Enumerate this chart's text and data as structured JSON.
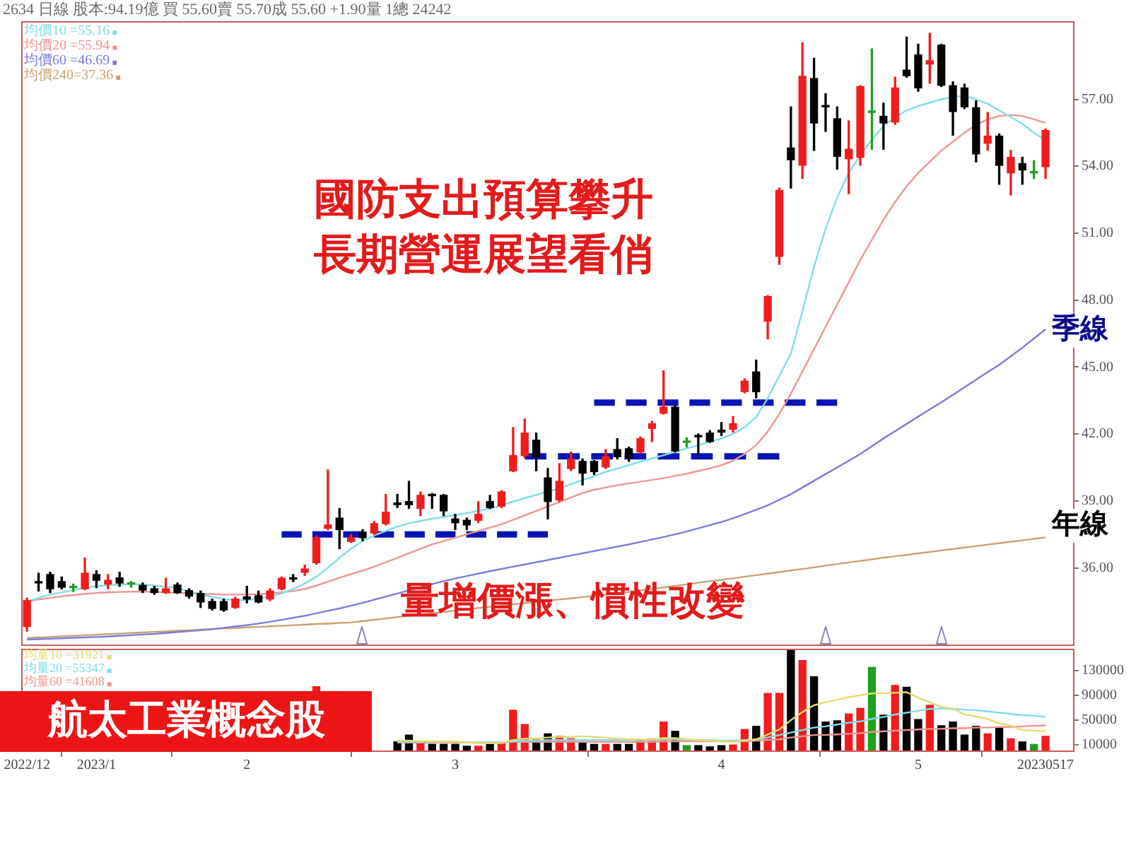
{
  "chart_data": [
    {
      "type": "candlestick",
      "title": "2634 日線 股本:94.19億 買 55.60賣 55.70成 55.60 +1.90量 1總 24242",
      "categories": [
        "2022/12",
        null,
        null,
        null,
        null,
        null,
        "2023/1",
        null,
        null,
        null,
        null,
        null,
        null,
        null,
        null,
        null,
        null,
        null,
        null,
        "2",
        null,
        null,
        null,
        null,
        null,
        null,
        null,
        null,
        null,
        null,
        null,
        null,
        null,
        null,
        null,
        null,
        null,
        "3",
        null,
        null,
        null,
        null,
        null,
        null,
        null,
        null,
        null,
        null,
        null,
        null,
        null,
        null,
        null,
        null,
        null,
        null,
        null,
        null,
        null,
        null,
        "4",
        null,
        null,
        null,
        null,
        null,
        null,
        null,
        null,
        null,
        null,
        null,
        null,
        null,
        null,
        null,
        null,
        "5",
        null,
        null,
        null,
        null,
        null,
        null,
        null,
        null,
        null,
        null,
        "20230517",
        null,
        null
      ],
      "ohlc": [
        [
          33.37,
          34.64,
          33.16,
          34.53
        ],
        [
          35.32,
          35.76,
          34.96,
          35.32
        ],
        [
          35.7,
          35.8,
          34.89,
          35.06
        ],
        [
          35.38,
          35.59,
          35.06,
          35.13
        ],
        [
          35.11,
          35.27,
          34.94,
          35.11
        ],
        [
          35.06,
          36.44,
          35.02,
          35.76
        ],
        [
          35.7,
          35.87,
          35.11,
          35.44
        ],
        [
          35.27,
          35.7,
          35.06,
          35.44
        ],
        [
          35.55,
          35.8,
          35.17,
          35.32
        ],
        [
          35.27,
          35.38,
          35.13,
          35.27
        ],
        [
          35.21,
          35.32,
          34.89,
          35.0
        ],
        [
          35.06,
          35.17,
          34.81,
          34.89
        ],
        [
          34.89,
          35.53,
          34.85,
          35.06
        ],
        [
          35.23,
          35.32,
          34.85,
          34.89
        ],
        [
          34.98,
          35.06,
          34.64,
          34.73
        ],
        [
          34.85,
          34.96,
          34.22,
          34.47
        ],
        [
          34.49,
          34.6,
          34.11,
          34.18
        ],
        [
          34.49,
          34.6,
          34.05,
          34.11
        ],
        [
          34.22,
          34.68,
          34.18,
          34.6
        ],
        [
          34.7,
          35.17,
          34.43,
          34.6
        ],
        [
          34.75,
          34.96,
          34.43,
          34.47
        ],
        [
          34.6,
          35.06,
          34.53,
          34.96
        ],
        [
          35.06,
          35.59,
          35.02,
          35.53
        ],
        [
          35.55,
          35.7,
          35.38,
          35.49
        ],
        [
          35.8,
          36.12,
          35.66,
          35.95
        ],
        [
          36.23,
          37.43,
          36.16,
          37.35
        ],
        [
          37.77,
          40.39,
          37.71,
          37.92
        ],
        [
          38.23,
          38.66,
          36.86,
          37.71
        ],
        [
          37.18,
          37.49,
          37.14,
          37.35
        ],
        [
          37.6,
          37.71,
          37.22,
          37.35
        ],
        [
          37.56,
          38.07,
          37.49,
          37.98
        ],
        [
          37.98,
          39.29,
          37.92,
          38.49
        ],
        [
          38.91,
          39.29,
          38.7,
          38.83
        ],
        [
          38.97,
          39.88,
          38.66,
          38.83
        ],
        [
          38.66,
          39.4,
          38.34,
          39.25
        ],
        [
          39.29,
          39.33,
          38.66,
          39.23
        ],
        [
          39.25,
          39.29,
          38.34,
          38.55
        ],
        [
          38.19,
          38.4,
          37.71,
          38.02
        ],
        [
          38.13,
          38.23,
          37.71,
          37.92
        ],
        [
          38.13,
          38.97,
          38.02,
          38.4
        ],
        [
          38.97,
          39.25,
          38.66,
          38.7
        ],
        [
          38.76,
          39.46,
          38.7,
          39.4
        ],
        [
          40.35,
          42.29,
          40.31,
          41.03
        ],
        [
          41.03,
          42.67,
          40.94,
          42.04
        ],
        [
          41.72,
          42.04,
          40.35,
          40.98
        ],
        [
          40.03,
          40.45,
          38.19,
          38.97
        ],
        [
          39.04,
          40.67,
          38.97,
          39.88
        ],
        [
          40.45,
          41.19,
          40.35,
          40.88
        ],
        [
          40.77,
          40.88,
          39.71,
          40.24
        ],
        [
          40.77,
          40.81,
          40.18,
          40.31
        ],
        [
          40.52,
          41.3,
          40.45,
          40.98
        ],
        [
          41.3,
          41.79,
          40.88,
          40.98
        ],
        [
          41.34,
          41.41,
          40.77,
          40.94
        ],
        [
          41.19,
          41.87,
          41.15,
          41.79
        ],
        [
          42.25,
          42.57,
          41.66,
          42.46
        ],
        [
          42.93,
          44.83,
          42.89,
          43.2
        ],
        [
          43.2,
          43.25,
          41.19,
          41.24
        ],
        [
          41.62,
          41.83,
          41.41,
          41.62
        ],
        [
          41.91,
          42.0,
          41.09,
          41.87
        ],
        [
          42.04,
          42.15,
          41.62,
          41.66
        ],
        [
          42.17,
          42.51,
          41.93,
          42.08
        ],
        [
          42.21,
          42.78,
          42.08,
          42.46
        ],
        [
          43.9,
          44.47,
          43.84,
          44.37
        ],
        [
          44.78,
          45.31,
          43.62,
          43.89
        ],
        [
          47.06,
          48.2,
          46.26,
          48.16
        ],
        [
          49.96,
          53.02,
          49.6,
          52.92
        ],
        [
          54.82,
          56.66,
          53.02,
          54.29
        ],
        [
          54.04,
          59.53,
          53.45,
          58.03
        ],
        [
          57.93,
          58.84,
          54.71,
          55.94
        ],
        [
          56.72,
          57.25,
          55.56,
          56.66
        ],
        [
          56.13,
          56.66,
          53.87,
          54.44
        ],
        [
          54.33,
          56.03,
          52.77,
          54.76
        ],
        [
          54.4,
          57.61,
          54.04,
          57.57
        ],
        [
          56.41,
          59.26,
          54.76,
          56.41
        ],
        [
          56.24,
          56.83,
          54.76,
          55.94
        ],
        [
          55.98,
          57.99,
          55.88,
          57.51
        ],
        [
          58.31,
          59.79,
          57.99,
          58.06
        ],
        [
          58.99,
          59.47,
          57.36,
          57.51
        ],
        [
          58.58,
          59.96,
          57.72,
          58.73
        ],
        [
          59.43,
          59.47,
          57.57,
          57.63
        ],
        [
          57.61,
          57.78,
          55.39,
          56.45
        ],
        [
          57.51,
          57.68,
          56.58,
          56.66
        ],
        [
          56.62,
          56.93,
          54.19,
          54.55
        ],
        [
          55.03,
          56.41,
          54.71,
          55.35
        ],
        [
          55.35,
          55.45,
          53.19,
          54.04
        ],
        [
          53.7,
          54.71,
          52.71,
          54.4
        ],
        [
          54.12,
          54.4,
          53.19,
          53.83
        ],
        [
          53.7,
          54.25,
          53.45,
          53.7
        ],
        [
          53.98,
          55.67,
          53.45,
          55.6
        ],
        null,
        null
      ],
      "colors": [
        "#f01c1c",
        "#000000",
        "#000000",
        "#000000",
        "#1fa01f",
        "#f01c1c",
        "#000000",
        "#f01c1c",
        "#000000",
        "#1fa01f",
        "#000000",
        "#000000",
        "#f01c1c",
        "#000000",
        "#000000",
        "#000000",
        "#000000",
        "#000000",
        "#f01c1c",
        "#000000",
        "#000000",
        "#f01c1c",
        "#f01c1c",
        "#000000",
        "#f01c1c",
        "#f01c1c",
        "#f01c1c",
        "#000000",
        "#f01c1c",
        "#000000",
        "#f01c1c",
        "#f01c1c",
        "#000000",
        "#000000",
        "#f01c1c",
        "#000000",
        "#000000",
        "#000000",
        "#000000",
        "#f01c1c",
        "#000000",
        "#f01c1c",
        "#f01c1c",
        "#f01c1c",
        "#000000",
        "#000000",
        "#f01c1c",
        "#f01c1c",
        "#000000",
        "#000000",
        "#f01c1c",
        "#000000",
        "#000000",
        "#f01c1c",
        "#f01c1c",
        "#f01c1c",
        "#000000",
        "#1fa01f",
        "#000000",
        "#000000",
        "#000000",
        "#f01c1c",
        "#f01c1c",
        "#000000",
        "#f01c1c",
        "#f01c1c",
        "#000000",
        "#f01c1c",
        "#000000",
        "#000000",
        "#000000",
        "#f01c1c",
        "#f01c1c",
        "#1fa01f",
        "#000000",
        "#f01c1c",
        "#000000",
        "#000000",
        "#f01c1c",
        "#000000",
        "#000000",
        "#000000",
        "#000000",
        "#f01c1c",
        "#000000",
        "#f01c1c",
        "#000000",
        "#1fa01f",
        "#f01c1c",
        null,
        null
      ],
      "series": [
        {
          "type": "line",
          "name": "均價10 =55.16",
          "color": "#7fdde6",
          "values": [
            34.5,
            34.65,
            34.8,
            34.9,
            35.0,
            35.1,
            35.18,
            35.22,
            35.25,
            35.28,
            35.25,
            35.2,
            35.15,
            35.1,
            34.95,
            34.82,
            34.7,
            34.6,
            34.55,
            34.55,
            34.62,
            34.72,
            34.85,
            35.05,
            35.3,
            35.6,
            36.0,
            36.45,
            36.85,
            37.2,
            37.45,
            37.65,
            37.85,
            38.0,
            38.1,
            38.2,
            38.28,
            38.36,
            38.45,
            38.55,
            38.65,
            38.8,
            38.97,
            39.12,
            39.27,
            39.42,
            39.57,
            39.75,
            39.93,
            40.1,
            40.3,
            40.45,
            40.6,
            40.76,
            40.9,
            41.05,
            41.2,
            41.35,
            41.5,
            41.65,
            41.8,
            42.0,
            42.3,
            42.75,
            43.6,
            44.6,
            45.6,
            47.5,
            49.5,
            51.2,
            52.6,
            53.7,
            54.5,
            55.2,
            55.8,
            56.2,
            56.5,
            56.7,
            56.85,
            57.0,
            57.1,
            57.15,
            57.0,
            56.8,
            56.5,
            56.2,
            55.9,
            55.5,
            55.16,
            null,
            null
          ]
        },
        {
          "type": "line",
          "name": "均價20 =55.94",
          "color": "#ee9494",
          "values": [
            34.5,
            34.58,
            34.65,
            34.72,
            34.78,
            34.83,
            34.87,
            34.9,
            34.92,
            34.93,
            34.93,
            34.92,
            34.9,
            34.88,
            34.86,
            34.84,
            34.82,
            34.8,
            34.8,
            34.8,
            34.82,
            34.85,
            34.9,
            34.96,
            35.05,
            35.2,
            35.38,
            35.55,
            35.72,
            35.88,
            36.05,
            36.25,
            36.45,
            36.65,
            36.85,
            37.05,
            37.2,
            37.35,
            37.5,
            37.65,
            37.8,
            37.95,
            38.15,
            38.35,
            38.55,
            38.75,
            38.95,
            39.15,
            39.35,
            39.5,
            39.6,
            39.7,
            39.78,
            39.86,
            39.94,
            40.02,
            40.12,
            40.22,
            40.34,
            40.46,
            40.6,
            40.8,
            41.1,
            41.5,
            42.1,
            42.9,
            43.8,
            44.8,
            45.8,
            46.8,
            47.8,
            48.8,
            49.8,
            50.7,
            51.6,
            52.4,
            53.1,
            53.7,
            54.2,
            54.7,
            55.1,
            55.5,
            55.85,
            56.1,
            56.25,
            56.3,
            56.25,
            56.1,
            55.94,
            null,
            null
          ]
        },
        {
          "type": "line",
          "name": "均價60 =46.69",
          "color": "#7b7bdc",
          "values": [
            32.78,
            32.8,
            32.82,
            32.84,
            32.86,
            32.88,
            32.9,
            32.92,
            32.95,
            32.98,
            33.01,
            33.04,
            33.08,
            33.12,
            33.16,
            33.2,
            33.25,
            33.31,
            33.37,
            33.43,
            33.5,
            33.58,
            33.67,
            33.76,
            33.85,
            33.96,
            34.07,
            34.18,
            34.3,
            34.43,
            34.57,
            34.71,
            34.85,
            34.99,
            35.13,
            35.27,
            35.4,
            35.52,
            35.63,
            35.74,
            35.85,
            35.95,
            36.05,
            36.15,
            36.25,
            36.35,
            36.45,
            36.55,
            36.65,
            36.75,
            36.85,
            36.95,
            37.05,
            37.16,
            37.27,
            37.38,
            37.5,
            37.63,
            37.77,
            37.91,
            38.05,
            38.22,
            38.4,
            38.6,
            38.8,
            39.05,
            39.3,
            39.6,
            39.9,
            40.2,
            40.5,
            40.8,
            41.1,
            41.45,
            41.8,
            42.12,
            42.45,
            42.78,
            43.1,
            43.42,
            43.75,
            44.09,
            44.43,
            44.77,
            45.1,
            45.48,
            45.87,
            46.28,
            46.69,
            null,
            null
          ]
        },
        {
          "type": "line",
          "name": "均價240=37.36",
          "color": "#c9a274",
          "values": [
            32.85,
            32.88,
            32.9,
            32.93,
            32.95,
            32.98,
            33.0,
            33.03,
            33.05,
            33.08,
            33.1,
            33.13,
            33.15,
            33.18,
            33.2,
            33.23,
            33.25,
            33.28,
            33.3,
            33.33,
            33.35,
            33.38,
            33.4,
            33.43,
            33.45,
            33.48,
            33.5,
            33.53,
            33.55,
            33.61,
            33.67,
            33.73,
            33.79,
            33.85,
            33.9,
            33.96,
            34.02,
            34.08,
            34.14,
            34.2,
            34.25,
            34.31,
            34.36,
            34.42,
            34.47,
            34.53,
            34.58,
            34.63,
            34.69,
            34.74,
            34.8,
            34.85,
            34.92,
            34.99,
            35.06,
            35.12,
            35.19,
            35.26,
            35.33,
            35.4,
            35.46,
            35.53,
            35.6,
            35.67,
            35.74,
            35.81,
            35.88,
            35.95,
            36.02,
            36.1,
            36.17,
            36.24,
            36.31,
            36.38,
            36.45,
            36.52,
            36.58,
            36.65,
            36.71,
            36.78,
            36.84,
            36.91,
            36.97,
            37.04,
            37.1,
            37.17,
            37.23,
            37.3,
            37.36,
            null,
            null
          ]
        },
        {
          "type": "line",
          "color": "#0a14b4",
          "line_style": "dashed",
          "values": [
            null,
            null,
            null,
            null,
            null,
            null,
            null,
            null,
            null,
            null,
            null,
            null,
            null,
            null,
            null,
            null,
            null,
            null,
            null,
            null,
            null,
            null,
            37.5,
            37.5,
            37.5,
            37.5,
            37.5,
            37.5,
            37.5,
            37.5,
            37.5,
            37.5,
            37.5,
            37.5,
            37.5,
            37.5,
            37.5,
            37.5,
            37.5,
            37.5,
            37.5,
            37.5,
            37.5,
            37.5,
            37.5,
            37.5,
            null,
            null,
            null,
            null,
            null,
            null,
            null,
            null,
            null,
            null,
            null,
            null,
            null,
            null,
            null,
            null,
            null,
            null,
            null,
            null,
            null,
            null,
            null,
            null,
            null,
            null,
            null,
            null,
            null,
            null,
            null,
            null,
            null,
            null,
            null,
            null,
            null,
            null,
            null,
            null,
            null,
            null,
            null,
            null,
            null
          ]
        },
        {
          "type": "line",
          "color": "#0a14b4",
          "line_style": "dashed",
          "values": [
            null,
            null,
            null,
            null,
            null,
            null,
            null,
            null,
            null,
            null,
            null,
            null,
            null,
            null,
            null,
            null,
            null,
            null,
            null,
            null,
            null,
            null,
            null,
            null,
            null,
            null,
            null,
            null,
            null,
            null,
            null,
            null,
            null,
            null,
            null,
            null,
            null,
            null,
            null,
            null,
            null,
            null,
            null,
            41.0,
            41.0,
            41.0,
            41.0,
            41.0,
            41.0,
            41.0,
            41.0,
            41.0,
            41.0,
            41.0,
            41.0,
            41.0,
            41.0,
            41.0,
            41.0,
            41.0,
            41.0,
            41.0,
            41.0,
            41.0,
            41.0,
            41.0,
            null,
            null,
            null,
            null,
            null,
            null,
            null,
            null,
            null,
            null,
            null,
            null,
            null,
            null,
            null,
            null,
            null,
            null,
            null,
            null,
            null,
            null,
            null,
            null,
            null
          ]
        },
        {
          "type": "line",
          "color": "#0a14b4",
          "line_style": "dashed",
          "values": [
            null,
            null,
            null,
            null,
            null,
            null,
            null,
            null,
            null,
            null,
            null,
            null,
            null,
            null,
            null,
            null,
            null,
            null,
            null,
            null,
            null,
            null,
            null,
            null,
            null,
            null,
            null,
            null,
            null,
            null,
            null,
            null,
            null,
            null,
            null,
            null,
            null,
            null,
            null,
            null,
            null,
            null,
            null,
            null,
            null,
            null,
            null,
            null,
            null,
            43.4,
            43.4,
            43.4,
            43.4,
            43.4,
            43.4,
            43.4,
            43.4,
            43.4,
            43.4,
            43.4,
            43.4,
            43.4,
            43.4,
            43.4,
            43.4,
            43.4,
            43.4,
            43.4,
            43.4,
            43.4,
            43.4,
            null,
            null,
            null,
            null,
            null,
            null,
            null,
            null,
            null,
            null,
            null,
            null,
            null,
            null,
            null,
            null,
            null,
            null,
            null,
            null
          ]
        }
      ],
      "ylim": [
        32.5,
        60.5
      ],
      "yticks": [
        {
          "value": 36,
          "label": "36.00"
        },
        {
          "value": 39,
          "label": "39.00"
        },
        {
          "value": 42,
          "label": "42.00"
        },
        {
          "value": 45,
          "label": "45.00"
        },
        {
          "value": 48,
          "label": "48.00"
        },
        {
          "value": 51,
          "label": "51.00"
        },
        {
          "value": 54,
          "label": "54.00"
        },
        {
          "value": 57,
          "label": "57.00"
        }
      ],
      "tick_labels": "y",
      "legend": "top left",
      "grid": false,
      "annotations": [
        "國防支出預算攀升",
        "長期營運展望看俏",
        "量增價漲、慣性改變",
        "季線",
        "年線"
      ]
    },
    {
      "type": "bar",
      "categories": [
        "2022/12",
        null,
        null,
        null,
        null,
        null,
        "2023/1",
        null,
        null,
        null,
        null,
        null,
        null,
        null,
        null,
        null,
        null,
        null,
        null,
        "2",
        null,
        null,
        null,
        null,
        null,
        null,
        null,
        null,
        null,
        null,
        null,
        null,
        null,
        null,
        null,
        null,
        null,
        "3",
        null,
        null,
        null,
        null,
        null,
        null,
        null,
        null,
        null,
        null,
        null,
        null,
        null,
        null,
        null,
        null,
        null,
        null,
        null,
        null,
        null,
        null,
        "4",
        null,
        null,
        null,
        null,
        null,
        null,
        null,
        null,
        null,
        null,
        null,
        null,
        null,
        null,
        null,
        null,
        "5",
        null,
        null,
        null,
        null,
        null,
        null,
        null,
        null,
        null,
        null,
        "20230517",
        null,
        null
      ],
      "series": [
        {
          "type": "bar",
          "values": [
            null,
            null,
            null,
            null,
            null,
            null,
            null,
            null,
            null,
            null,
            null,
            null,
            null,
            null,
            null,
            null,
            null,
            null,
            null,
            null,
            null,
            null,
            null,
            null,
            null,
            104000,
            null,
            null,
            null,
            null,
            null,
            null,
            15000,
            26000,
            15000,
            11000,
            11000,
            11000,
            8000,
            8000,
            11000,
            12000,
            66000,
            43000,
            18000,
            28000,
            24000,
            20000,
            15000,
            11000,
            11000,
            11000,
            11000,
            18000,
            20000,
            47000,
            32000,
            9000,
            9000,
            7000,
            9000,
            10000,
            35000,
            40000,
            93000,
            93000,
            164000,
            146000,
            120000,
            47000,
            49000,
            60000,
            69000,
            135000,
            58000,
            106000,
            103000,
            51000,
            74000,
            41000,
            47000,
            26000,
            40000,
            28000,
            38000,
            20000,
            15000,
            11000,
            24000,
            null,
            null
          ],
          "colors": [
            null,
            null,
            null,
            null,
            null,
            null,
            null,
            null,
            null,
            null,
            null,
            null,
            null,
            null,
            null,
            null,
            null,
            null,
            null,
            null,
            null,
            null,
            null,
            null,
            null,
            "#f01c1c",
            null,
            null,
            null,
            null,
            null,
            null,
            "#000000",
            "#000000",
            "#f01c1c",
            "#000000",
            "#000000",
            "#000000",
            "#000000",
            "#f01c1c",
            "#000000",
            "#f01c1c",
            "#f01c1c",
            "#f01c1c",
            "#000000",
            "#000000",
            "#f01c1c",
            "#f01c1c",
            "#000000",
            "#000000",
            "#f01c1c",
            "#000000",
            "#000000",
            "#f01c1c",
            "#f01c1c",
            "#f01c1c",
            "#000000",
            "#1fa01f",
            "#000000",
            "#000000",
            "#000000",
            "#f01c1c",
            "#f01c1c",
            "#000000",
            "#f01c1c",
            "#f01c1c",
            "#000000",
            "#f01c1c",
            "#000000",
            "#000000",
            "#000000",
            "#f01c1c",
            "#f01c1c",
            "#1fa01f",
            "#000000",
            "#f01c1c",
            "#000000",
            "#000000",
            "#f01c1c",
            "#000000",
            "#000000",
            "#000000",
            "#000000",
            "#f01c1c",
            "#000000",
            "#f01c1c",
            "#000000",
            "#1fa01f",
            "#f01c1c",
            null,
            null
          ]
        },
        {
          "type": "line",
          "name": "均量10 =31921",
          "color": "#e6dc6e",
          "values": [
            null,
            null,
            null,
            null,
            null,
            null,
            null,
            null,
            null,
            null,
            null,
            null,
            null,
            null,
            null,
            null,
            null,
            null,
            null,
            null,
            null,
            null,
            null,
            null,
            null,
            null,
            null,
            null,
            null,
            null,
            null,
            null,
            17000,
            17000,
            16000,
            16000,
            15000,
            15000,
            14000,
            13000,
            13000,
            13000,
            18000,
            20000,
            21000,
            22000,
            23000,
            23000,
            24000,
            23000,
            22000,
            20000,
            19000,
            19000,
            19000,
            21000,
            21000,
            19000,
            18000,
            17000,
            16000,
            15000,
            17000,
            19000,
            27000,
            35000,
            50000,
            63000,
            74000,
            79000,
            83000,
            87000,
            90000,
            93000,
            93000,
            94000,
            95000,
            86000,
            79000,
            71000,
            69000,
            59000,
            56000,
            52000,
            45000,
            41000,
            34000,
            33000,
            32000,
            null,
            null
          ]
        },
        {
          "type": "line",
          "name": "均量20 =55347",
          "color": "#7fdde6",
          "values": [
            null,
            null,
            null,
            null,
            null,
            null,
            null,
            null,
            null,
            null,
            null,
            null,
            null,
            null,
            null,
            null,
            null,
            null,
            null,
            null,
            null,
            null,
            null,
            null,
            null,
            null,
            null,
            null,
            null,
            null,
            null,
            null,
            15000,
            15000,
            15000,
            15000,
            15000,
            15000,
            14000,
            14000,
            14000,
            14000,
            16000,
            17000,
            17000,
            18000,
            18000,
            18000,
            18000,
            18000,
            18000,
            18000,
            18000,
            18000,
            18000,
            19000,
            19000,
            18000,
            18000,
            18000,
            17000,
            17000,
            18000,
            19000,
            22000,
            26000,
            30000,
            34000,
            38000,
            40000,
            43000,
            46000,
            48000,
            52000,
            55000,
            59000,
            62000,
            65000,
            68000,
            69000,
            68000,
            67000,
            66000,
            64000,
            62000,
            60000,
            58000,
            57000,
            55347,
            null,
            null
          ]
        },
        {
          "type": "line",
          "name": "均量60 =41608",
          "color": "#ee9494",
          "values": [
            null,
            null,
            null,
            null,
            null,
            null,
            null,
            null,
            null,
            null,
            null,
            null,
            null,
            null,
            null,
            null,
            null,
            null,
            null,
            null,
            null,
            null,
            null,
            null,
            null,
            null,
            null,
            null,
            null,
            null,
            null,
            null,
            14000,
            14000,
            14000,
            14000,
            14000,
            14000,
            14000,
            14000,
            14000,
            14000,
            15000,
            15000,
            15000,
            15000,
            15000,
            15000,
            15000,
            15000,
            15000,
            15000,
            15000,
            15000,
            15000,
            16000,
            16000,
            16000,
            16000,
            16000,
            16000,
            16000,
            16000,
            17000,
            18000,
            19000,
            22000,
            24000,
            26000,
            26000,
            27000,
            28000,
            29000,
            31000,
            32000,
            33000,
            34000,
            35000,
            36000,
            36000,
            37000,
            37000,
            38000,
            38000,
            39000,
            39000,
            40000,
            41000,
            41608,
            null,
            null
          ]
        }
      ],
      "ylim": [
        0,
        165000
      ],
      "yticks": [
        10000,
        50000,
        90000,
        130000
      ],
      "legend": "top left",
      "grid": false,
      "annotations": [
        "航太工業概念股"
      ]
    }
  ]
}
